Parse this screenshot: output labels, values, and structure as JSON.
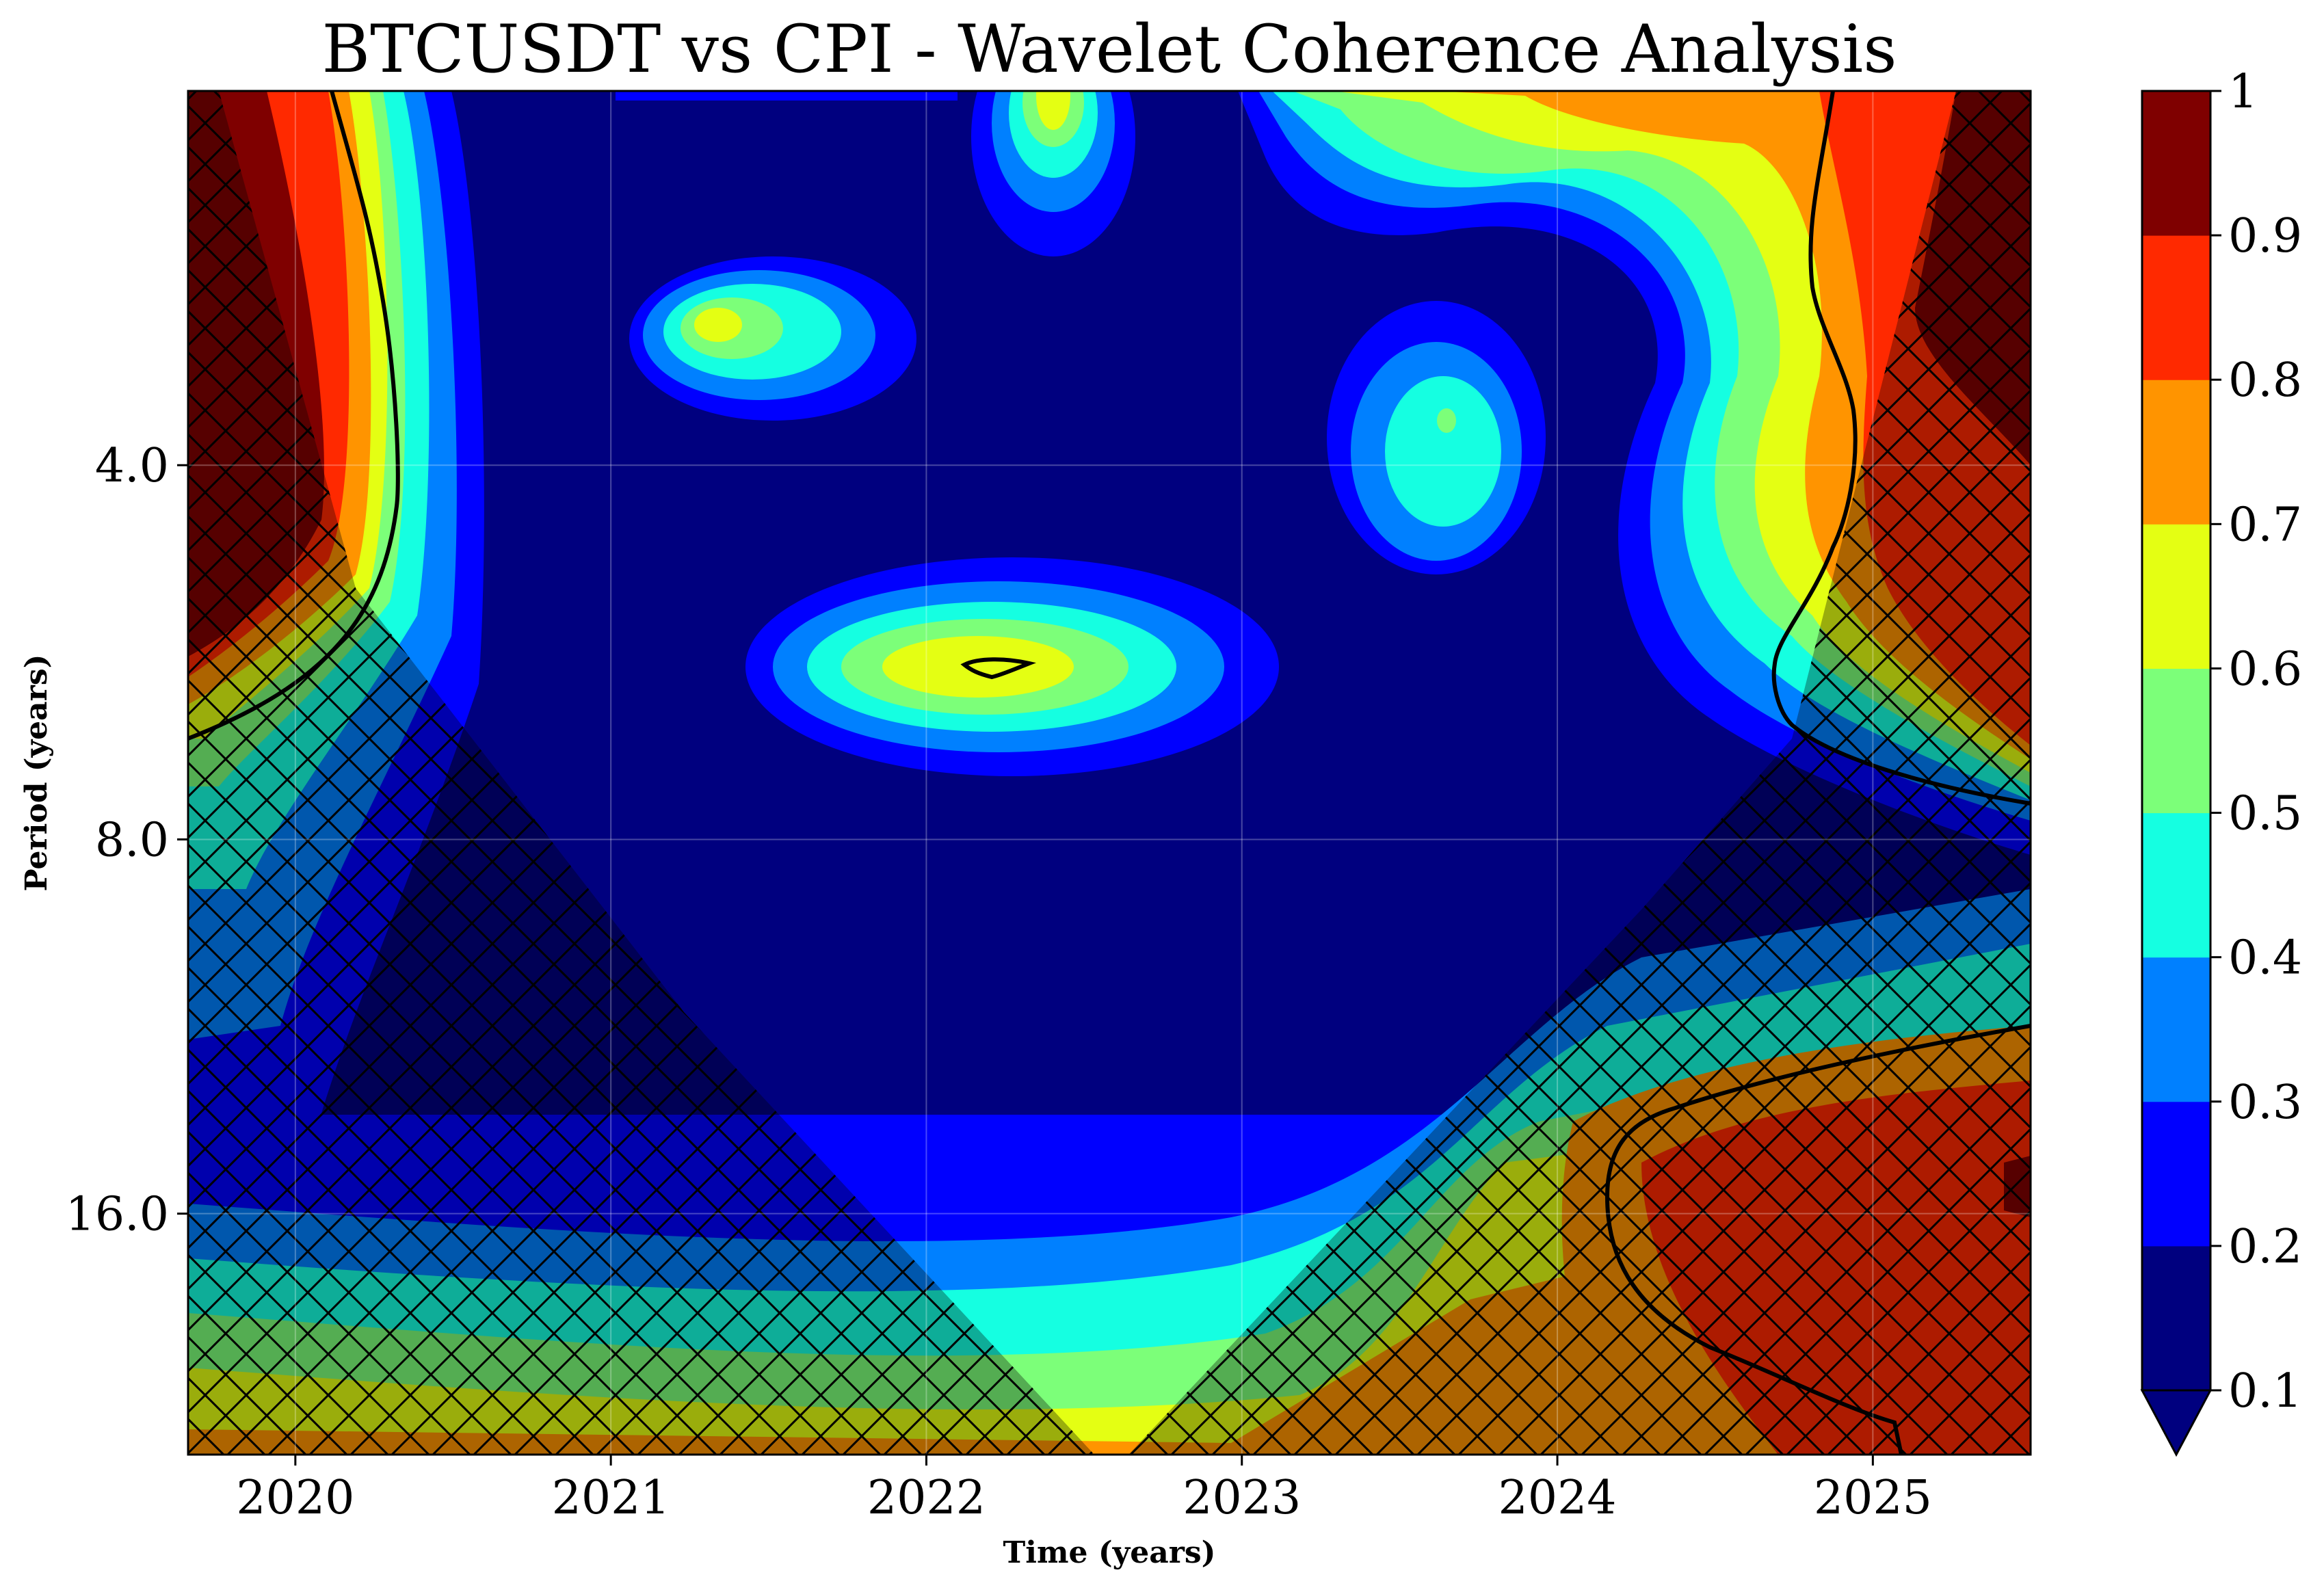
{
  "chart_data": {
    "type": "heatmap",
    "title": "BTCUSDT vs CPI - Wavelet Coherence Analysis",
    "xlabel": "Time (years)",
    "ylabel": "Period (years)",
    "x_ticks": [
      "2020",
      "2021",
      "2022",
      "2023",
      "2024",
      "2025"
    ],
    "x_tick_values": [
      2020,
      2021,
      2022,
      2023,
      2024,
      2025
    ],
    "xlim": [
      2019.66,
      2025.5
    ],
    "y_ticks": [
      "4.0",
      "8.0",
      "16.0"
    ],
    "y_tick_values": [
      4,
      8,
      16
    ],
    "ylim": [
      2.0,
      25.0
    ],
    "y_scale": "log2",
    "y_inverted": true,
    "grid": true,
    "colorbar": {
      "levels": [
        0.1,
        0.2,
        0.3,
        0.4,
        0.5,
        0.6,
        0.7,
        0.8,
        0.9,
        1.0
      ],
      "tick_labels": [
        "0.1",
        "0.2",
        "0.3",
        "0.4",
        "0.5",
        "0.6",
        "0.7",
        "0.8",
        "0.9",
        "1"
      ],
      "colors": [
        "#00007f",
        "#0000ff",
        "#0080ff",
        "#15ffe1",
        "#7cff79",
        "#e4ff13",
        "#ff9400",
        "#ff2900",
        "#7f0000"
      ],
      "extend": "min",
      "location": "right"
    },
    "cone_of_influence": "hatched",
    "significance_contour": "black line",
    "features": [
      {
        "region": "left edge",
        "x": [
          2019.66,
          2020.2
        ],
        "period": [
          2.0,
          6.5
        ],
        "coherence": 0.95
      },
      {
        "region": "top right",
        "x": [
          2024.8,
          2025.5
        ],
        "period": [
          2.0,
          8.0
        ],
        "coherence": 0.9
      },
      {
        "region": "bottom right",
        "x": [
          2024.2,
          2025.5
        ],
        "period": [
          12.0,
          22.0
        ],
        "coherence": 0.85
      },
      {
        "region": "center blob",
        "x": [
          2022.0,
          2022.5
        ],
        "period": [
          5.6,
          6.4
        ],
        "coherence": 0.65
      },
      {
        "region": "upper-left blob",
        "x": [
          2021.2,
          2021.5
        ],
        "period": [
          2.6,
          3.2
        ],
        "coherence": 0.65
      },
      {
        "region": "upper-right blob",
        "x": [
          2023.5,
          2023.8
        ],
        "period": [
          3.4,
          4.2
        ],
        "coherence": 0.55
      },
      {
        "region": "top center blob",
        "x": [
          2022.3,
          2022.6
        ],
        "period": [
          2.0,
          2.3
        ],
        "coherence": 0.65
      },
      {
        "region": "bottom band",
        "x": [
          2019.66,
          2024.5
        ],
        "period": [
          16.0,
          25.0
        ],
        "coherence": 0.6
      }
    ]
  },
  "colors": {
    "background": "#ffffff",
    "dark_navy": "#00007f",
    "hatch": "#000000"
  }
}
